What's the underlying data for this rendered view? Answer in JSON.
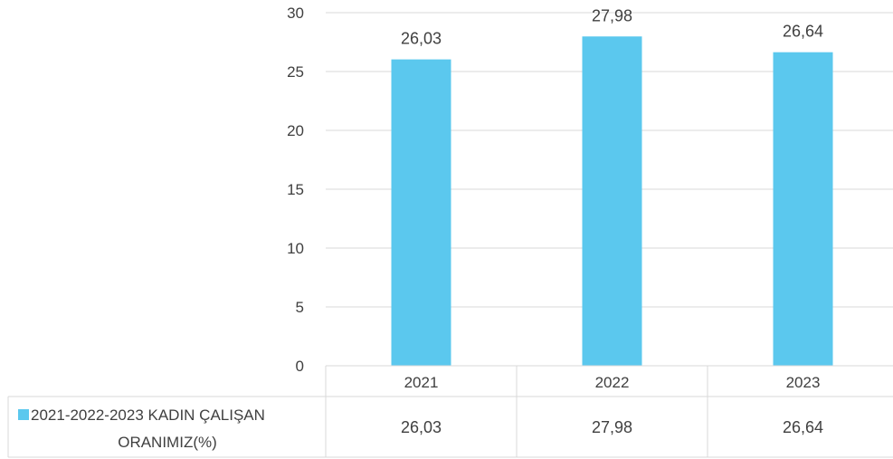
{
  "chart_data": {
    "type": "bar",
    "title": "",
    "xlabel": "",
    "ylabel": "",
    "ylim": [
      0,
      30
    ],
    "yticks": [
      "0",
      "5",
      "10",
      "15",
      "20",
      "25",
      "30"
    ],
    "grid": true,
    "legend": "data-table-left",
    "categories": [
      "2021",
      "2022",
      "2023"
    ],
    "series": [
      {
        "name": "2021-2022-2023 KADIN ÇALIŞAN ORANIMIZ(%)",
        "values": [
          26.03,
          27.98,
          26.64
        ],
        "labels": [
          "26,03",
          "27,98",
          "26,64"
        ],
        "color": "#5BC8EE"
      }
    ],
    "data_table": {
      "series_label_lines": [
        "2021-2022-2023 KADIN ÇALIŞAN",
        "ORANIMIZ(%)"
      ]
    }
  }
}
